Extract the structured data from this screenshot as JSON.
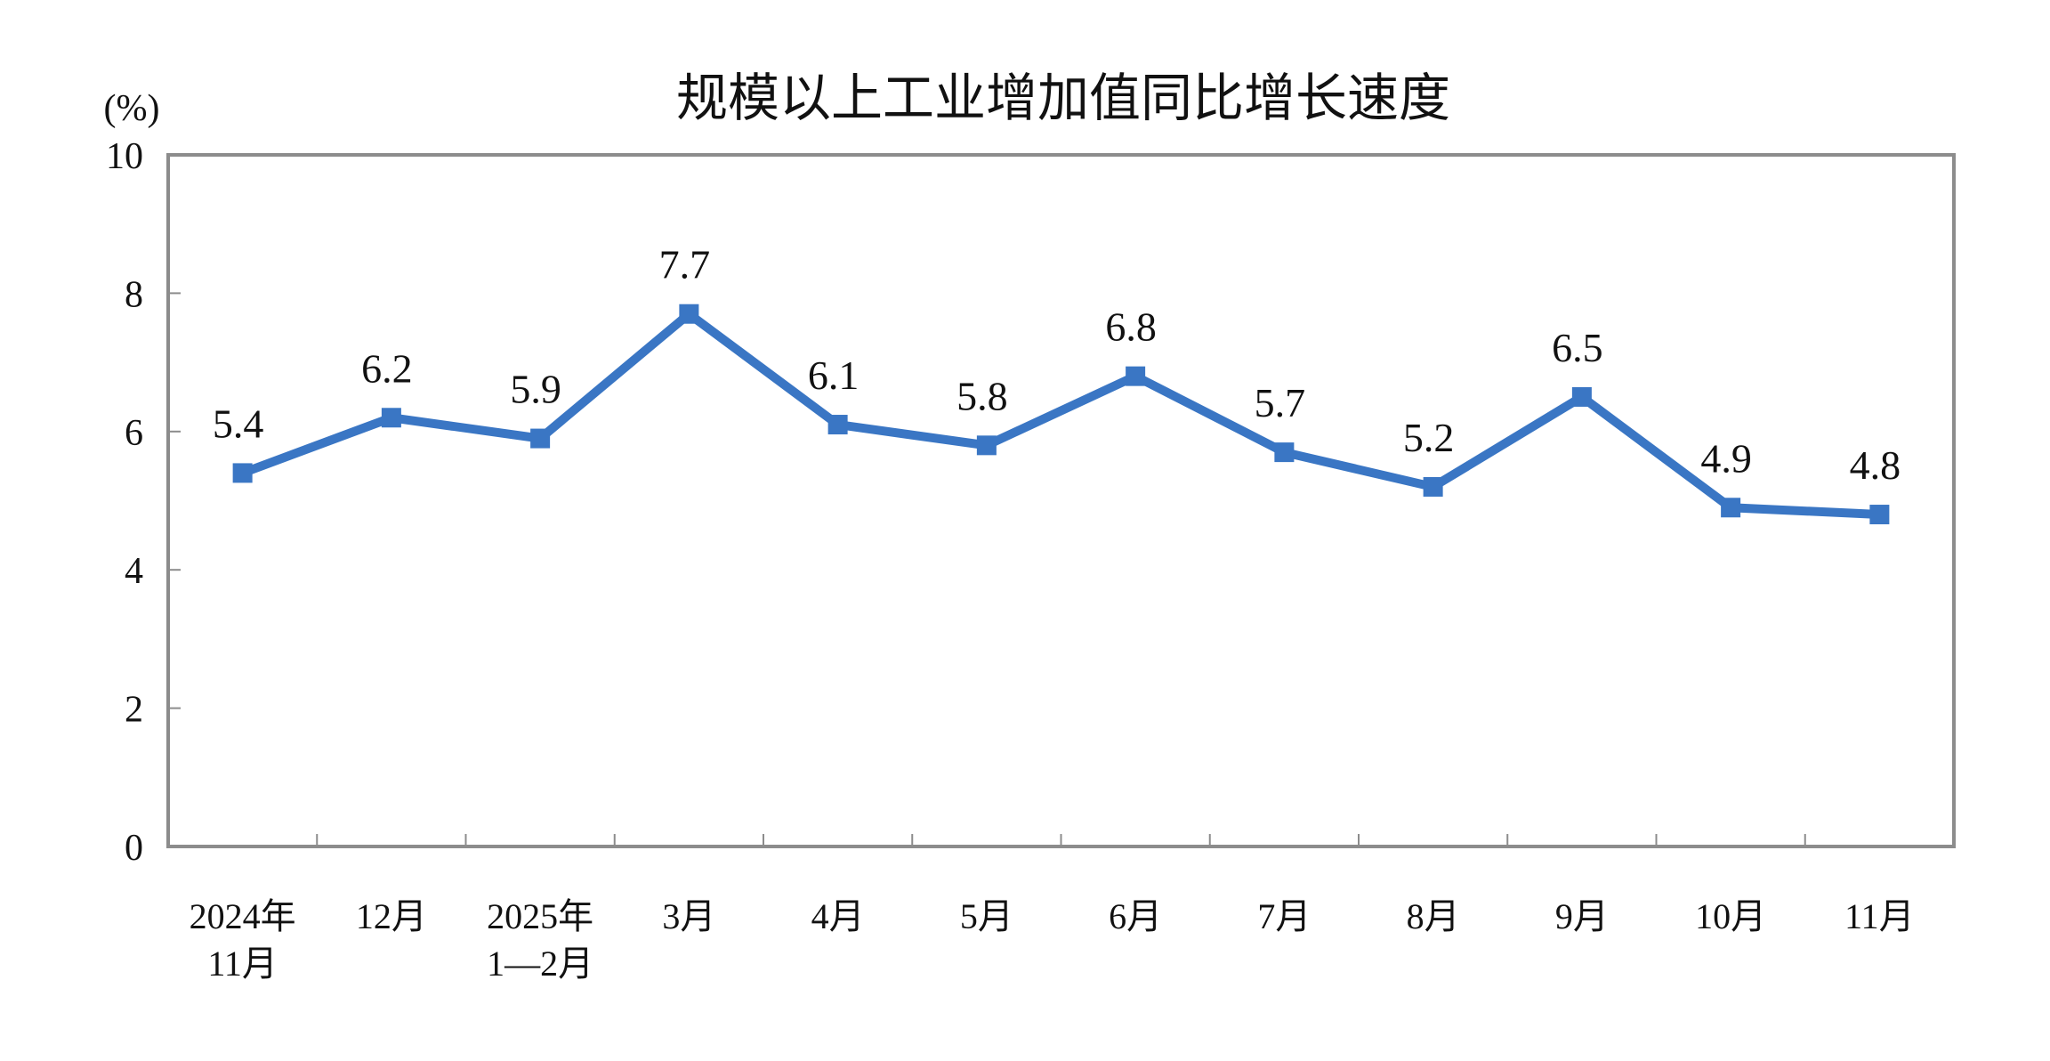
{
  "chart_data": {
    "type": "line",
    "title": "规模以上工业增加值同比增长速度",
    "ylabel": "(%)",
    "xlabel": "",
    "ylim": [
      0,
      10
    ],
    "yticks": [
      0,
      2,
      4,
      6,
      8,
      10
    ],
    "grid": false,
    "categories": [
      [
        "2024年",
        "11月"
      ],
      [
        "12月"
      ],
      [
        "2025年",
        "1—2月"
      ],
      [
        "3月"
      ],
      [
        "4月"
      ],
      [
        "5月"
      ],
      [
        "6月"
      ],
      [
        "7月"
      ],
      [
        "8月"
      ],
      [
        "9月"
      ],
      [
        "10月"
      ],
      [
        "11月"
      ]
    ],
    "series": [
      {
        "values": [
          5.4,
          6.2,
          5.9,
          7.7,
          6.1,
          5.8,
          6.8,
          5.7,
          5.2,
          6.5,
          4.9,
          4.8
        ],
        "labels": [
          "5.4",
          "6.2",
          "5.9",
          "7.7",
          "6.1",
          "5.8",
          "6.8",
          "5.7",
          "5.2",
          "6.5",
          "4.9",
          "4.8"
        ],
        "color": "#3a76c4",
        "marker": "square"
      }
    ],
    "colors": {
      "axis": "#8c8c8c"
    }
  }
}
